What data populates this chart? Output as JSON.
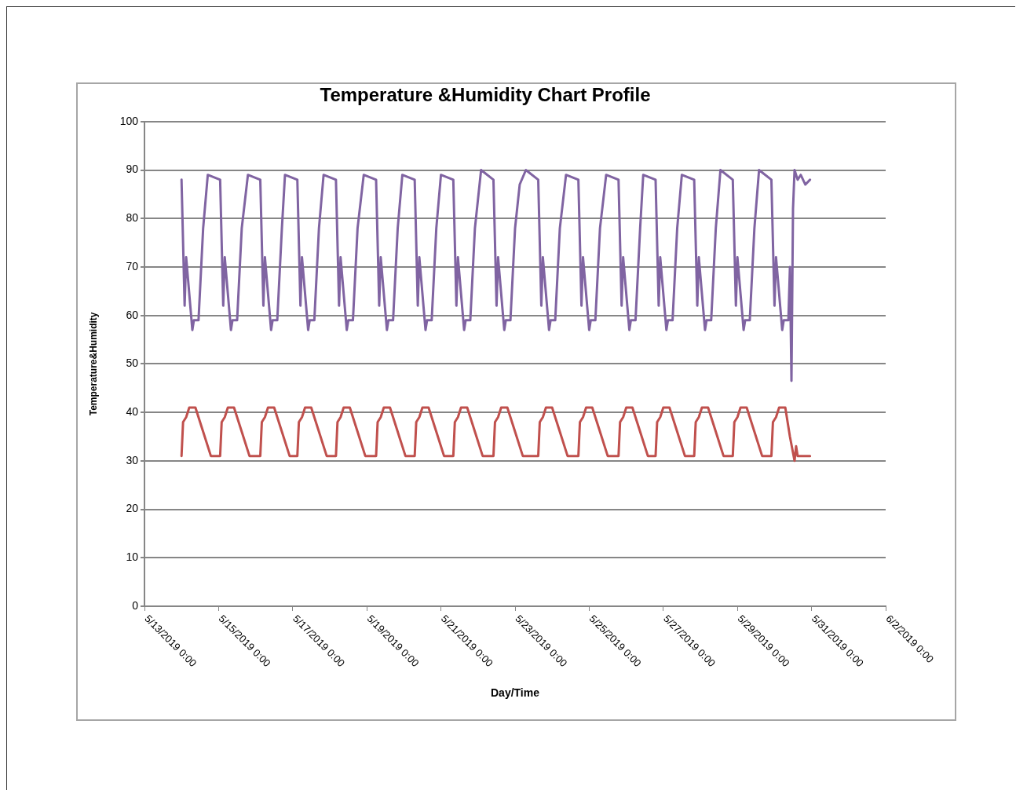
{
  "chart_data": {
    "type": "line",
    "title": "Temperature &Humidity Chart Profile",
    "xlabel": "Day/Time",
    "ylabel": "Temperature&Humidity",
    "xlim": [
      "2019-05-13T00:00",
      "2019-06-02T00:00"
    ],
    "xticks": [
      {
        "value": "2019-05-13T00:00",
        "label": "5/13/2019 0:00"
      },
      {
        "value": "2019-05-15T00:00",
        "label": "5/15/2019 0:00"
      },
      {
        "value": "2019-05-17T00:00",
        "label": "5/17/2019 0:00"
      },
      {
        "value": "2019-05-19T00:00",
        "label": "5/19/2019 0:00"
      },
      {
        "value": "2019-05-21T00:00",
        "label": "5/21/2019 0:00"
      },
      {
        "value": "2019-05-23T00:00",
        "label": "5/23/2019 0:00"
      },
      {
        "value": "2019-05-25T00:00",
        "label": "5/25/2019 0:00"
      },
      {
        "value": "2019-05-27T00:00",
        "label": "5/27/2019 0:00"
      },
      {
        "value": "2019-05-29T00:00",
        "label": "5/29/2019 0:00"
      },
      {
        "value": "2019-05-31T00:00",
        "label": "5/31/2019 0:00"
      },
      {
        "value": "2019-06-02T00:00",
        "label": "6/2/2019 0:00"
      }
    ],
    "ylim": [
      0,
      100
    ],
    "yticks": [
      0,
      10,
      20,
      30,
      40,
      50,
      60,
      70,
      80,
      90,
      100
    ],
    "grid": "y",
    "legend": false,
    "marker": "none",
    "line_style": "solid",
    "series": [
      {
        "color": "#8064a2",
        "x": [
          "2019-05-14T00:00",
          "2019-05-14T02:00",
          "2019-05-14T03:00",
          "2019-05-14T07:00",
          "2019-05-14T08:00",
          "2019-05-14T11:00",
          "2019-05-14T14:00",
          "2019-05-14T17:00",
          "2019-05-15T01:00",
          "2019-05-15T03:00",
          "2019-05-15T04:00",
          "2019-05-15T08:00",
          "2019-05-15T09:00",
          "2019-05-15T12:00",
          "2019-05-15T15:00",
          "2019-05-15T19:00",
          "2019-05-16T03:00",
          "2019-05-16T05:00",
          "2019-05-16T06:00",
          "2019-05-16T10:00",
          "2019-05-16T11:00",
          "2019-05-16T14:00",
          "2019-05-16T17:00",
          "2019-05-16T19:00",
          "2019-05-17T03:00",
          "2019-05-17T05:00",
          "2019-05-17T06:00",
          "2019-05-17T10:00",
          "2019-05-17T11:00",
          "2019-05-17T14:00",
          "2019-05-17T17:00",
          "2019-05-17T20:00",
          "2019-05-18T04:00",
          "2019-05-18T06:00",
          "2019-05-18T07:00",
          "2019-05-18T11:00",
          "2019-05-18T12:00",
          "2019-05-18T15:00",
          "2019-05-18T18:00",
          "2019-05-18T22:00",
          "2019-05-19T06:00",
          "2019-05-19T08:00",
          "2019-05-19T09:00",
          "2019-05-19T13:00",
          "2019-05-19T14:00",
          "2019-05-19T17:00",
          "2019-05-19T20:00",
          "2019-05-19T23:00",
          "2019-05-20T07:00",
          "2019-05-20T09:00",
          "2019-05-20T10:00",
          "2019-05-20T14:00",
          "2019-05-20T15:00",
          "2019-05-20T18:00",
          "2019-05-20T21:00",
          "2019-05-21T00:00",
          "2019-05-21T08:00",
          "2019-05-21T10:00",
          "2019-05-21T11:00",
          "2019-05-21T15:00",
          "2019-05-21T16:00",
          "2019-05-21T19:00",
          "2019-05-21T22:00",
          "2019-05-22T02:00",
          "2019-05-22T10:00",
          "2019-05-22T12:00",
          "2019-05-22T13:00",
          "2019-05-22T17:00",
          "2019-05-22T18:00",
          "2019-05-22T21:00",
          "2019-05-23T00:00",
          "2019-05-23T03:00",
          "2019-05-23T07:00",
          "2019-05-23T15:00",
          "2019-05-23T17:00",
          "2019-05-23T18:00",
          "2019-05-23T22:00",
          "2019-05-23T23:00",
          "2019-05-24T02:00",
          "2019-05-24T05:00",
          "2019-05-24T09:00",
          "2019-05-24T17:00",
          "2019-05-24T19:00",
          "2019-05-24T20:00",
          "2019-05-25T00:00",
          "2019-05-25T01:00",
          "2019-05-25T04:00",
          "2019-05-25T07:00",
          "2019-05-25T11:00",
          "2019-05-25T19:00",
          "2019-05-25T21:00",
          "2019-05-25T22:00",
          "2019-05-26T02:00",
          "2019-05-26T03:00",
          "2019-05-26T06:00",
          "2019-05-26T09:00",
          "2019-05-26T11:00",
          "2019-05-26T19:00",
          "2019-05-26T21:00",
          "2019-05-26T22:00",
          "2019-05-27T02:00",
          "2019-05-27T03:00",
          "2019-05-27T06:00",
          "2019-05-27T09:00",
          "2019-05-27T12:00",
          "2019-05-27T20:00",
          "2019-05-27T22:00",
          "2019-05-27T23:00",
          "2019-05-28T03:00",
          "2019-05-28T04:00",
          "2019-05-28T07:00",
          "2019-05-28T10:00",
          "2019-05-28T13:00",
          "2019-05-28T21:00",
          "2019-05-28T23:00",
          "2019-05-29T00:00",
          "2019-05-29T04:00",
          "2019-05-29T05:00",
          "2019-05-29T08:00",
          "2019-05-29T11:00",
          "2019-05-29T14:00",
          "2019-05-29T22:00",
          "2019-05-30T00:00",
          "2019-05-30T01:00",
          "2019-05-30T05:00",
          "2019-05-30T06:00",
          "2019-05-30T09:00",
          "2019-05-30T10:00",
          "2019-05-30T11:00",
          "2019-05-30T12:00",
          "2019-05-30T13:00",
          "2019-05-30T15:00",
          "2019-05-30T17:00",
          "2019-05-30T20:00",
          "2019-05-30T23:00"
        ],
        "values": [
          88,
          62,
          72,
          57,
          59,
          59,
          78,
          89,
          88,
          62,
          72,
          57,
          59,
          59,
          78,
          89,
          88,
          62,
          72,
          57,
          59,
          59,
          78,
          89,
          88,
          62,
          72,
          57,
          59,
          59,
          78,
          89,
          88,
          62,
          72,
          57,
          59,
          59,
          78,
          89,
          88,
          62,
          72,
          57,
          59,
          59,
          78,
          89,
          88,
          62,
          72,
          57,
          59,
          59,
          78,
          89,
          88,
          62,
          72,
          57,
          59,
          59,
          78,
          90,
          88,
          62,
          72,
          57,
          59,
          59,
          78,
          87,
          90,
          88,
          62,
          72,
          57,
          59,
          59,
          78,
          89,
          88,
          62,
          72,
          57,
          59,
          59,
          78,
          89,
          88,
          62,
          72,
          57,
          59,
          59,
          78,
          89,
          88,
          62,
          72,
          57,
          59,
          59,
          78,
          89,
          88,
          62,
          72,
          57,
          59,
          59,
          78,
          90,
          88,
          62,
          72,
          57,
          59,
          59,
          78,
          90,
          88,
          62,
          72,
          57,
          59,
          59,
          70,
          46.5,
          82,
          90,
          88,
          89,
          87,
          88
        ]
      },
      {
        "color": "#c0504d",
        "x": [
          "2019-05-14T00:00",
          "2019-05-14T01:00",
          "2019-05-14T03:00",
          "2019-05-14T05:00",
          "2019-05-14T09:00",
          "2019-05-14T14:00",
          "2019-05-14T19:00",
          "2019-05-15T01:00",
          "2019-05-15T02:00",
          "2019-05-15T04:00",
          "2019-05-15T06:00",
          "2019-05-15T10:00",
          "2019-05-15T15:00",
          "2019-05-15T20:00",
          "2019-05-16T03:00",
          "2019-05-16T04:00",
          "2019-05-16T06:00",
          "2019-05-16T08:00",
          "2019-05-16T12:00",
          "2019-05-16T17:00",
          "2019-05-16T22:00",
          "2019-05-17T03:00",
          "2019-05-17T04:00",
          "2019-05-17T06:00",
          "2019-05-17T08:00",
          "2019-05-17T12:00",
          "2019-05-17T17:00",
          "2019-05-17T22:00",
          "2019-05-18T04:00",
          "2019-05-18T05:00",
          "2019-05-18T07:00",
          "2019-05-18T09:00",
          "2019-05-18T13:00",
          "2019-05-18T18:00",
          "2019-05-18T23:00",
          "2019-05-19T06:00",
          "2019-05-19T07:00",
          "2019-05-19T09:00",
          "2019-05-19T11:00",
          "2019-05-19T15:00",
          "2019-05-19T20:00",
          "2019-05-20T01:00",
          "2019-05-20T07:00",
          "2019-05-20T08:00",
          "2019-05-20T10:00",
          "2019-05-20T12:00",
          "2019-05-20T16:00",
          "2019-05-20T21:00",
          "2019-05-21T02:00",
          "2019-05-21T08:00",
          "2019-05-21T09:00",
          "2019-05-21T11:00",
          "2019-05-21T13:00",
          "2019-05-21T17:00",
          "2019-05-21T22:00",
          "2019-05-22T03:00",
          "2019-05-22T10:00",
          "2019-05-22T11:00",
          "2019-05-22T13:00",
          "2019-05-22T15:00",
          "2019-05-22T19:00",
          "2019-05-23T00:00",
          "2019-05-23T05:00",
          "2019-05-23T15:00",
          "2019-05-23T16:00",
          "2019-05-23T18:00",
          "2019-05-23T20:00",
          "2019-05-24T00:00",
          "2019-05-24T05:00",
          "2019-05-24T10:00",
          "2019-05-24T17:00",
          "2019-05-24T18:00",
          "2019-05-24T20:00",
          "2019-05-24T22:00",
          "2019-05-25T02:00",
          "2019-05-25T07:00",
          "2019-05-25T12:00",
          "2019-05-25T19:00",
          "2019-05-25T20:00",
          "2019-05-25T22:00",
          "2019-05-26T00:00",
          "2019-05-26T04:00",
          "2019-05-26T09:00",
          "2019-05-26T14:00",
          "2019-05-26T19:00",
          "2019-05-26T20:00",
          "2019-05-26T22:00",
          "2019-05-27T00:00",
          "2019-05-27T04:00",
          "2019-05-27T09:00",
          "2019-05-27T14:00",
          "2019-05-27T20:00",
          "2019-05-27T21:00",
          "2019-05-27T23:00",
          "2019-05-28T01:00",
          "2019-05-28T05:00",
          "2019-05-28T10:00",
          "2019-05-28T15:00",
          "2019-05-28T21:00",
          "2019-05-28T22:00",
          "2019-05-29T00:00",
          "2019-05-29T02:00",
          "2019-05-29T06:00",
          "2019-05-29T11:00",
          "2019-05-29T16:00",
          "2019-05-29T22:00",
          "2019-05-29T23:00",
          "2019-05-30T01:00",
          "2019-05-30T03:00",
          "2019-05-30T07:00",
          "2019-05-30T10:00",
          "2019-05-30T13:00",
          "2019-05-30T14:00",
          "2019-05-30T15:00",
          "2019-05-30T23:00"
        ],
        "values": [
          31,
          38,
          39,
          41,
          41,
          36,
          31,
          31,
          38,
          39,
          41,
          41,
          36,
          31,
          31,
          38,
          39,
          41,
          41,
          36,
          31,
          31,
          38,
          39,
          41,
          41,
          36,
          31,
          31,
          38,
          39,
          41,
          41,
          36,
          31,
          31,
          38,
          39,
          41,
          41,
          36,
          31,
          31,
          38,
          39,
          41,
          41,
          36,
          31,
          31,
          38,
          39,
          41,
          41,
          36,
          31,
          31,
          38,
          39,
          41,
          41,
          36,
          31,
          31,
          38,
          39,
          41,
          41,
          36,
          31,
          31,
          38,
          39,
          41,
          41,
          36,
          31,
          31,
          38,
          39,
          41,
          41,
          36,
          31,
          31,
          38,
          39,
          41,
          41,
          36,
          31,
          31,
          38,
          39,
          41,
          41,
          36,
          31,
          31,
          38,
          39,
          41,
          41,
          36,
          31,
          31,
          38,
          39,
          41,
          41,
          35,
          30,
          33,
          31,
          31
        ]
      }
    ]
  }
}
